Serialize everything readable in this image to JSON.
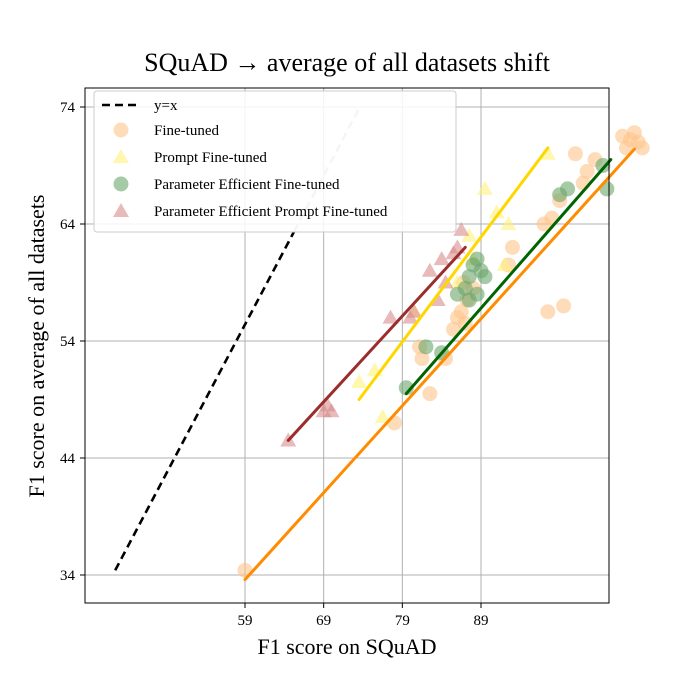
{
  "chart_data": {
    "type": "scatter",
    "title": "SQuAD → average of all datasets shift",
    "xlabel": "F1 score on SQuAD",
    "ylabel": "F1 score on average of all datasets",
    "xticks": [
      59,
      69,
      79,
      89
    ],
    "yticks": [
      34,
      44,
      54,
      64,
      74
    ],
    "grid": true,
    "legend_position": "top-left",
    "reference_line": {
      "name": "y=x",
      "color": "#000000",
      "style": "dashed",
      "points": [
        [
          42.5,
          34.4
        ],
        [
          73.6,
          74.0
        ]
      ]
    },
    "series": [
      {
        "name": "Fine-tuned",
        "marker": "circle",
        "color": "#ffc58a",
        "fit_color": "#ff8c00",
        "fit": [
          [
            59.0,
            33.6
          ],
          [
            108.5,
            70.4
          ]
        ],
        "points": [
          [
            59.0,
            34.4
          ],
          [
            78.0,
            47.0
          ],
          [
            82.5,
            49.5
          ],
          [
            81.5,
            52.5
          ],
          [
            81.2,
            53.5
          ],
          [
            84.5,
            52.5
          ],
          [
            85.5,
            55.0
          ],
          [
            86.0,
            56.0
          ],
          [
            87.0,
            55.5
          ],
          [
            86.5,
            56.5
          ],
          [
            87.2,
            57.5
          ],
          [
            86.8,
            59.0
          ],
          [
            88.0,
            58.5
          ],
          [
            92.5,
            60.5
          ],
          [
            93.0,
            62.0
          ],
          [
            97.0,
            64.0
          ],
          [
            98.0,
            64.5
          ],
          [
            99.0,
            66.0
          ],
          [
            101.0,
            70.0
          ],
          [
            102.0,
            67.5
          ],
          [
            102.5,
            68.5
          ],
          [
            103.5,
            69.5
          ],
          [
            97.5,
            56.5
          ],
          [
            99.5,
            57.0
          ],
          [
            107.0,
            71.5
          ],
          [
            107.5,
            70.5
          ],
          [
            108.0,
            71.2
          ],
          [
            108.5,
            71.8
          ],
          [
            109.0,
            71.0
          ],
          [
            109.5,
            70.5
          ]
        ]
      },
      {
        "name": "Prompt Fine-tuned",
        "marker": "triangle",
        "color": "#fff27a",
        "fit_color": "#ffd700",
        "fit": [
          [
            73.5,
            49.0
          ],
          [
            97.5,
            70.5
          ]
        ],
        "points": [
          [
            73.5,
            50.5
          ],
          [
            75.5,
            51.5
          ],
          [
            76.5,
            47.5
          ],
          [
            80.5,
            56.5
          ],
          [
            86.0,
            59.0
          ],
          [
            88.0,
            61.0
          ],
          [
            89.5,
            67.0
          ],
          [
            91.0,
            65.0
          ],
          [
            92.5,
            64.0
          ],
          [
            97.5,
            70.0
          ],
          [
            92.0,
            60.5
          ],
          [
            87.5,
            63.0
          ]
        ]
      },
      {
        "name": "Parameter Efficient Fine-tuned",
        "marker": "circle",
        "color": "#6aa56a",
        "fit_color": "#006400",
        "fit": [
          [
            79.5,
            49.5
          ],
          [
            105.5,
            69.5
          ]
        ],
        "points": [
          [
            79.5,
            50.0
          ],
          [
            82.0,
            53.5
          ],
          [
            84.0,
            53.0
          ],
          [
            86.0,
            58.0
          ],
          [
            87.0,
            58.5
          ],
          [
            87.5,
            59.5
          ],
          [
            88.0,
            60.5
          ],
          [
            88.5,
            61.0
          ],
          [
            89.0,
            60.0
          ],
          [
            88.5,
            58.0
          ],
          [
            87.5,
            57.5
          ],
          [
            99.0,
            66.5
          ],
          [
            100.0,
            67.0
          ],
          [
            104.5,
            69.0
          ],
          [
            105.0,
            67.0
          ],
          [
            89.5,
            59.5
          ]
        ]
      },
      {
        "name": "Parameter Efficient Prompt Fine-tuned",
        "marker": "triangle",
        "color": "#d98c8c",
        "fit_color": "#9b2d2d",
        "fit": [
          [
            64.5,
            45.5
          ],
          [
            87.0,
            62.0
          ]
        ],
        "points": [
          [
            64.5,
            45.5
          ],
          [
            69.0,
            48.0
          ],
          [
            69.5,
            48.5
          ],
          [
            70.0,
            48.0
          ],
          [
            77.5,
            56.0
          ],
          [
            80.5,
            56.5
          ],
          [
            82.5,
            60.0
          ],
          [
            84.0,
            61.0
          ],
          [
            84.5,
            59.0
          ],
          [
            85.5,
            61.5
          ],
          [
            86.5,
            63.5
          ],
          [
            86.0,
            62.0
          ],
          [
            83.5,
            57.5
          ],
          [
            80.0,
            56.0
          ]
        ]
      }
    ]
  }
}
